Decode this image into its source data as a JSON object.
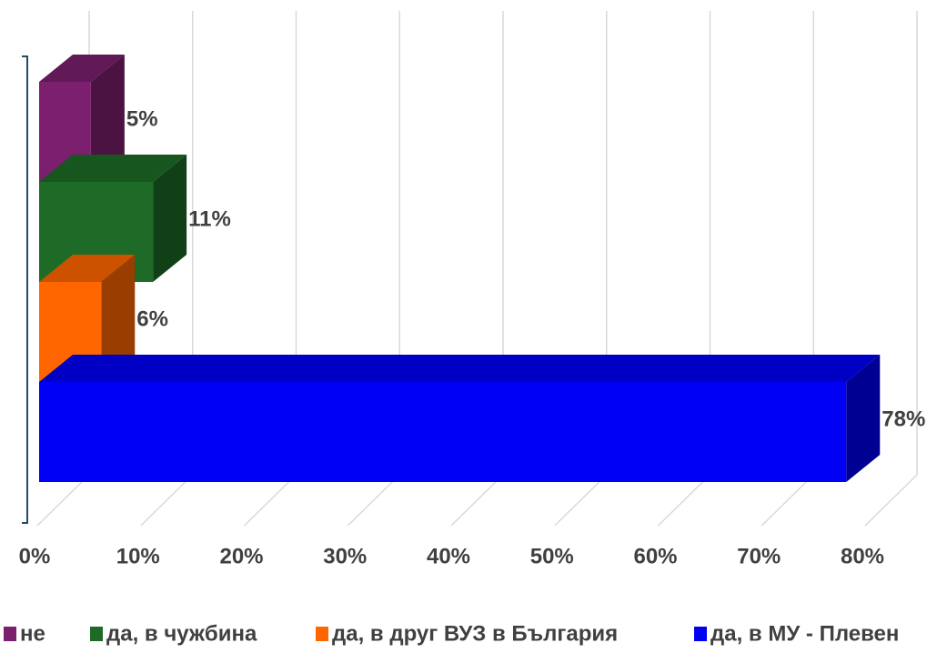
{
  "chart_data": {
    "type": "bar3d",
    "series": [
      {
        "name": "не",
        "color": "#7b1f6e",
        "values": [
          5
        ],
        "value_labels": [
          "5%"
        ]
      },
      {
        "name": "да, в чужбина",
        "color": "#1d6b26",
        "values": [
          11
        ],
        "value_labels": [
          "11%"
        ]
      },
      {
        "name": "да, в друг ВУЗ в България",
        "color": "#ff6600",
        "values": [
          6
        ],
        "value_labels": [
          "6%"
        ]
      },
      {
        "name": "да, в МУ - Плевен",
        "color": "#0000f5",
        "values": [
          78
        ],
        "value_labels": [
          "78%"
        ]
      }
    ],
    "xlim": [
      0,
      80
    ],
    "xticks": [
      {
        "value": 0,
        "label": "0%"
      },
      {
        "value": 10,
        "label": "10%"
      },
      {
        "value": 20,
        "label": "20%"
      },
      {
        "value": 30,
        "label": "30%"
      },
      {
        "value": 40,
        "label": "40%"
      },
      {
        "value": 50,
        "label": "50%"
      },
      {
        "value": 60,
        "label": "60%"
      },
      {
        "value": 70,
        "label": "70%"
      },
      {
        "value": 80,
        "label": "80%"
      }
    ],
    "grid": true,
    "legend": "bottom"
  }
}
